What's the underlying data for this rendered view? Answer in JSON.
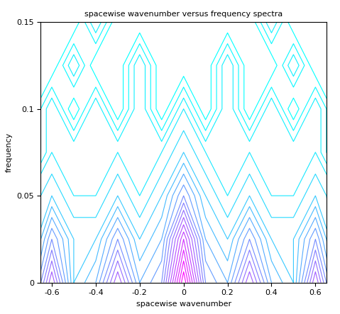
{
  "chart_data": {
    "type": "contour",
    "title": "spacewise wavenumber versus frequency spectra",
    "x_label": "spacewise wavenumber",
    "y_label": "frequency",
    "x": [
      -0.7,
      -0.6,
      -0.5,
      -0.4,
      -0.3,
      -0.2,
      -0.1,
      0,
      0.1,
      0.2,
      0.3,
      0.4,
      0.5,
      0.6,
      0.7
    ],
    "y": [
      0,
      0.025,
      0.05,
      0.075,
      0.1,
      0.125,
      0.15
    ],
    "cells": [
      [
        3,
        7,
        3,
        4,
        7,
        4,
        5,
        10,
        5,
        4,
        7,
        4,
        3,
        7,
        3
      ],
      [
        2,
        5,
        3,
        3,
        5,
        3,
        4,
        8,
        4,
        3,
        5,
        3,
        3,
        5,
        2
      ],
      [
        2,
        3,
        2,
        2,
        3,
        2,
        3,
        5,
        3,
        2,
        3,
        2,
        2,
        3,
        2
      ],
      [
        1,
        2,
        2,
        2,
        2,
        2,
        2,
        3,
        2,
        2,
        2,
        2,
        2,
        2,
        1
      ],
      [
        1,
        2,
        1,
        2,
        1,
        2,
        1,
        2,
        1,
        2,
        1,
        2,
        1,
        2,
        1
      ],
      [
        1,
        1,
        2,
        1,
        1,
        2,
        1,
        1,
        1,
        2,
        1,
        1,
        2,
        1,
        1
      ],
      [
        1,
        1,
        1,
        2,
        1,
        1,
        1,
        1,
        1,
        1,
        1,
        2,
        1,
        1,
        1
      ]
    ],
    "levels": [
      1.25,
      1.5,
      1.75,
      2,
      2.5,
      3,
      3.5,
      4,
      4.5,
      5,
      5.5,
      6,
      6.5,
      7,
      7.5,
      8,
      8.5,
      9,
      9.5
    ],
    "xlim": [
      -0.65,
      0.65
    ],
    "ylim": [
      0,
      0.15
    ],
    "xticks": [
      -0.6,
      -0.4,
      -0.2,
      0,
      0.2,
      0.4,
      0.6
    ],
    "yticks": [
      0,
      0.05,
      0.1,
      0.15
    ],
    "grid": false
  }
}
